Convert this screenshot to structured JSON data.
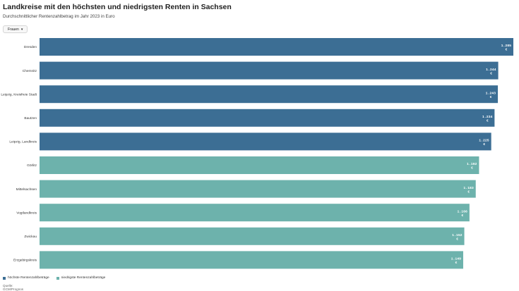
{
  "title": "Landkreise mit den höchsten und niedrigsten Renten in Sachsen",
  "subtitle": "Durchschnittlicher Rentenzahlbetrag im Jahr 2023 in Euro",
  "filter": {
    "selected": "Frauen"
  },
  "legend": {
    "highest": "höchste Rentenzahlbeträge",
    "lowest": "niedrigste Rentenzahlbeträge"
  },
  "source": {
    "label": "Quelle:",
    "value": "GCM/Prognos"
  },
  "colors": {
    "highest": "#3c6e94",
    "lowest": "#6db2ac",
    "label_text": "#ffffff"
  },
  "chart_data": {
    "type": "bar",
    "orientation": "horizontal",
    "categories": [
      "Dresden",
      "Chemnitz",
      "Leipzig, Kreisfreie Stadt",
      "Bautzen",
      "Leipzig, Landkreis",
      "Görlitz",
      "Mittelsachsen",
      "Vogtlandkreis",
      "Zwickau",
      "Erzgebirgskreis"
    ],
    "values": [
      1285,
      1244,
      1243,
      1234,
      1225,
      1192,
      1183,
      1166,
      1152,
      1149
    ],
    "value_labels": [
      "1.285",
      "1.244",
      "1.243",
      "1.234",
      "1.225",
      "1.192",
      "1.183",
      "1.166",
      "1.152",
      "1.149"
    ],
    "unit_label": "€",
    "groups": [
      "highest",
      "highest",
      "highest",
      "highest",
      "highest",
      "lowest",
      "lowest",
      "lowest",
      "lowest",
      "lowest"
    ],
    "xlim": [
      0,
      1285
    ],
    "grid": false,
    "legend_position": "bottom-left"
  }
}
